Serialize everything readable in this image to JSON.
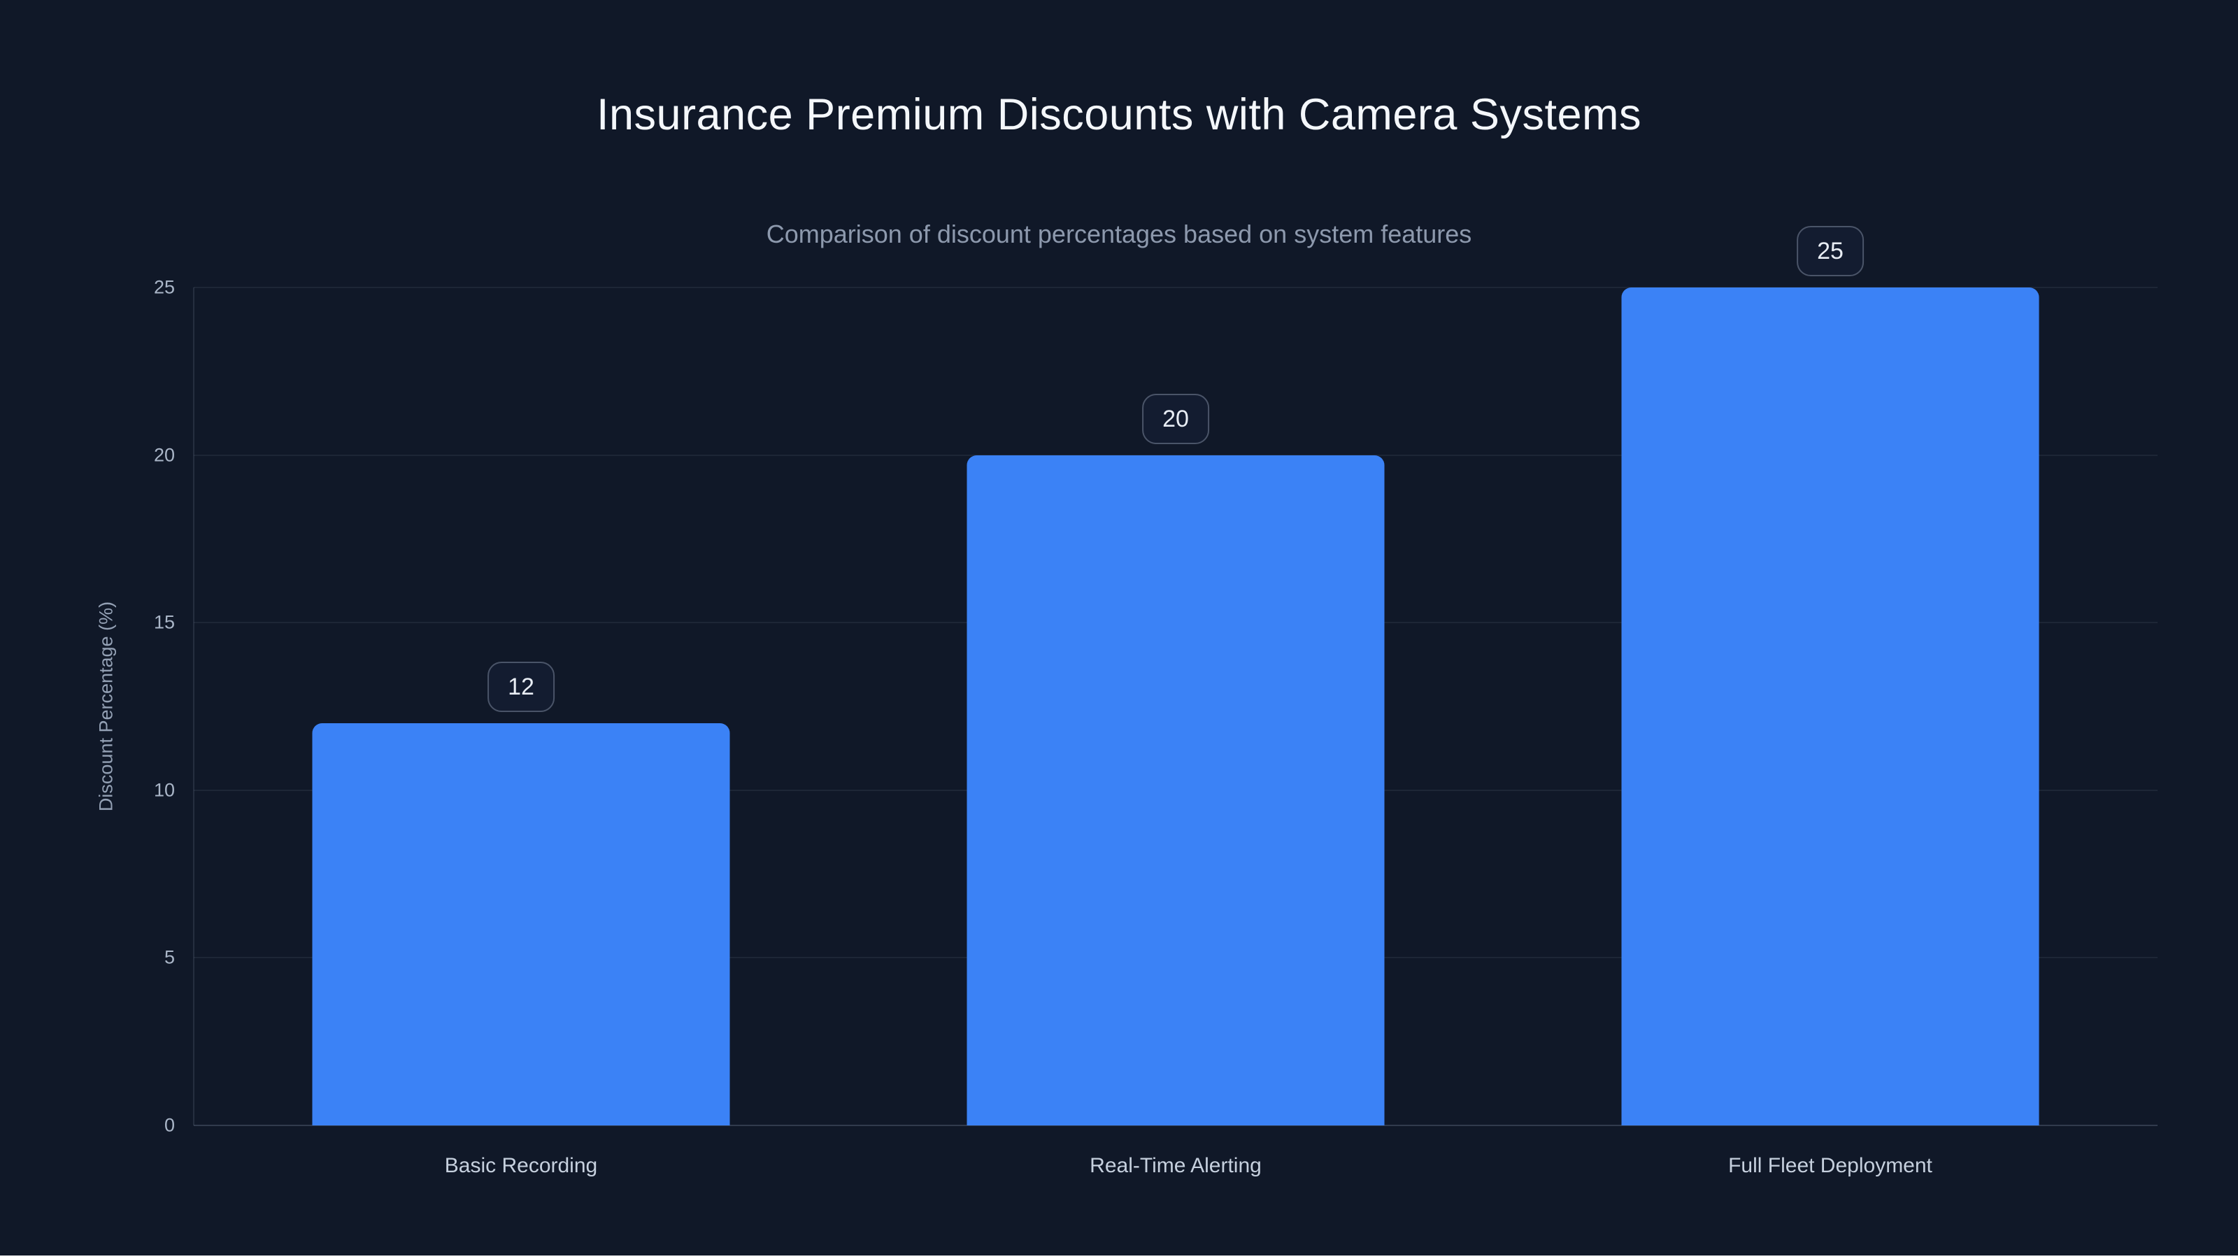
{
  "chart_data": {
    "type": "bar",
    "title": "Insurance Premium Discounts with Camera Systems",
    "subtitle": "Comparison of discount percentages based on system features",
    "categories": [
      "Basic Recording",
      "Real-Time Alerting",
      "Full Fleet Deployment"
    ],
    "values": [
      12,
      20,
      25
    ],
    "value_labels": [
      "12",
      "20",
      "25"
    ],
    "xlabel": "",
    "ylabel": "Discount Percentage (%)",
    "ylim": [
      0,
      25
    ],
    "yticks": [
      0,
      5,
      10,
      15,
      20,
      25
    ],
    "ytick_labels": [
      "0",
      "5",
      "10",
      "15",
      "20",
      "25"
    ],
    "grid": "horizontal",
    "legend": "none"
  },
  "colors": {
    "background": "#101828",
    "bar_fill": "#3b82f6",
    "title_text": "#f4f7fb",
    "subtitle_text": "#8d99ad",
    "tick_text": "#aab6c8",
    "axis_label_text": "#93a0b4",
    "category_text": "#c6d0de",
    "badge_border": "#4a5468",
    "badge_text": "#e8edf4",
    "gridline": "rgba(148,163,184,0.10)",
    "baseline": "rgba(148,163,184,0.26)",
    "bottom_strip": "#ffffff"
  }
}
